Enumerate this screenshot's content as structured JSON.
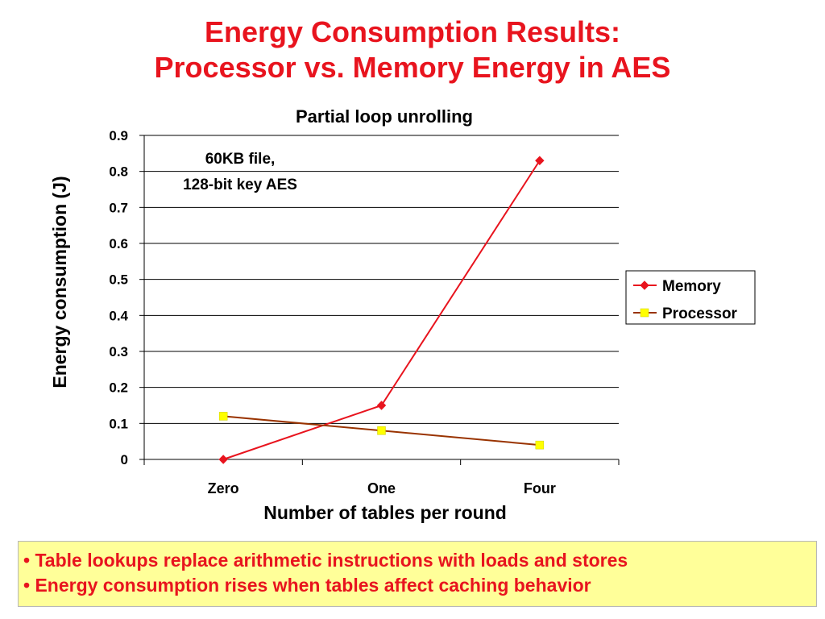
{
  "slide": {
    "title_line1": "Energy Consumption Results:",
    "title_line2": "Processor vs. Memory Energy in AES",
    "bullets": [
      "• Table lookups replace arithmetic instructions with loads and stores",
      "• Energy consumption rises when tables affect caching behavior"
    ]
  },
  "colors": {
    "title": "#e8141e",
    "memory_series": "#e8141e",
    "processor_series": "#993300",
    "processor_marker": "#ffff00",
    "bullet_box": "#ffff99"
  },
  "chart_data": {
    "type": "line",
    "title": "Partial loop unrolling",
    "annotation_line1": "60KB file,",
    "annotation_line2": "128-bit key AES",
    "xlabel": "Number of tables per round",
    "ylabel": "Energy consumption (J)",
    "categories": [
      "Zero",
      "One",
      "Four"
    ],
    "ylim": [
      0,
      0.9
    ],
    "yticks": [
      "0",
      "0.1",
      "0.2",
      "0.3",
      "0.4",
      "0.5",
      "0.6",
      "0.7",
      "0.8",
      "0.9"
    ],
    "grid": true,
    "legend_position": "right",
    "series": [
      {
        "name": "Memory",
        "values": [
          0.0,
          0.15,
          0.83
        ],
        "marker": "diamond"
      },
      {
        "name": "Processor",
        "values": [
          0.12,
          0.08,
          0.04
        ],
        "marker": "square"
      }
    ]
  }
}
